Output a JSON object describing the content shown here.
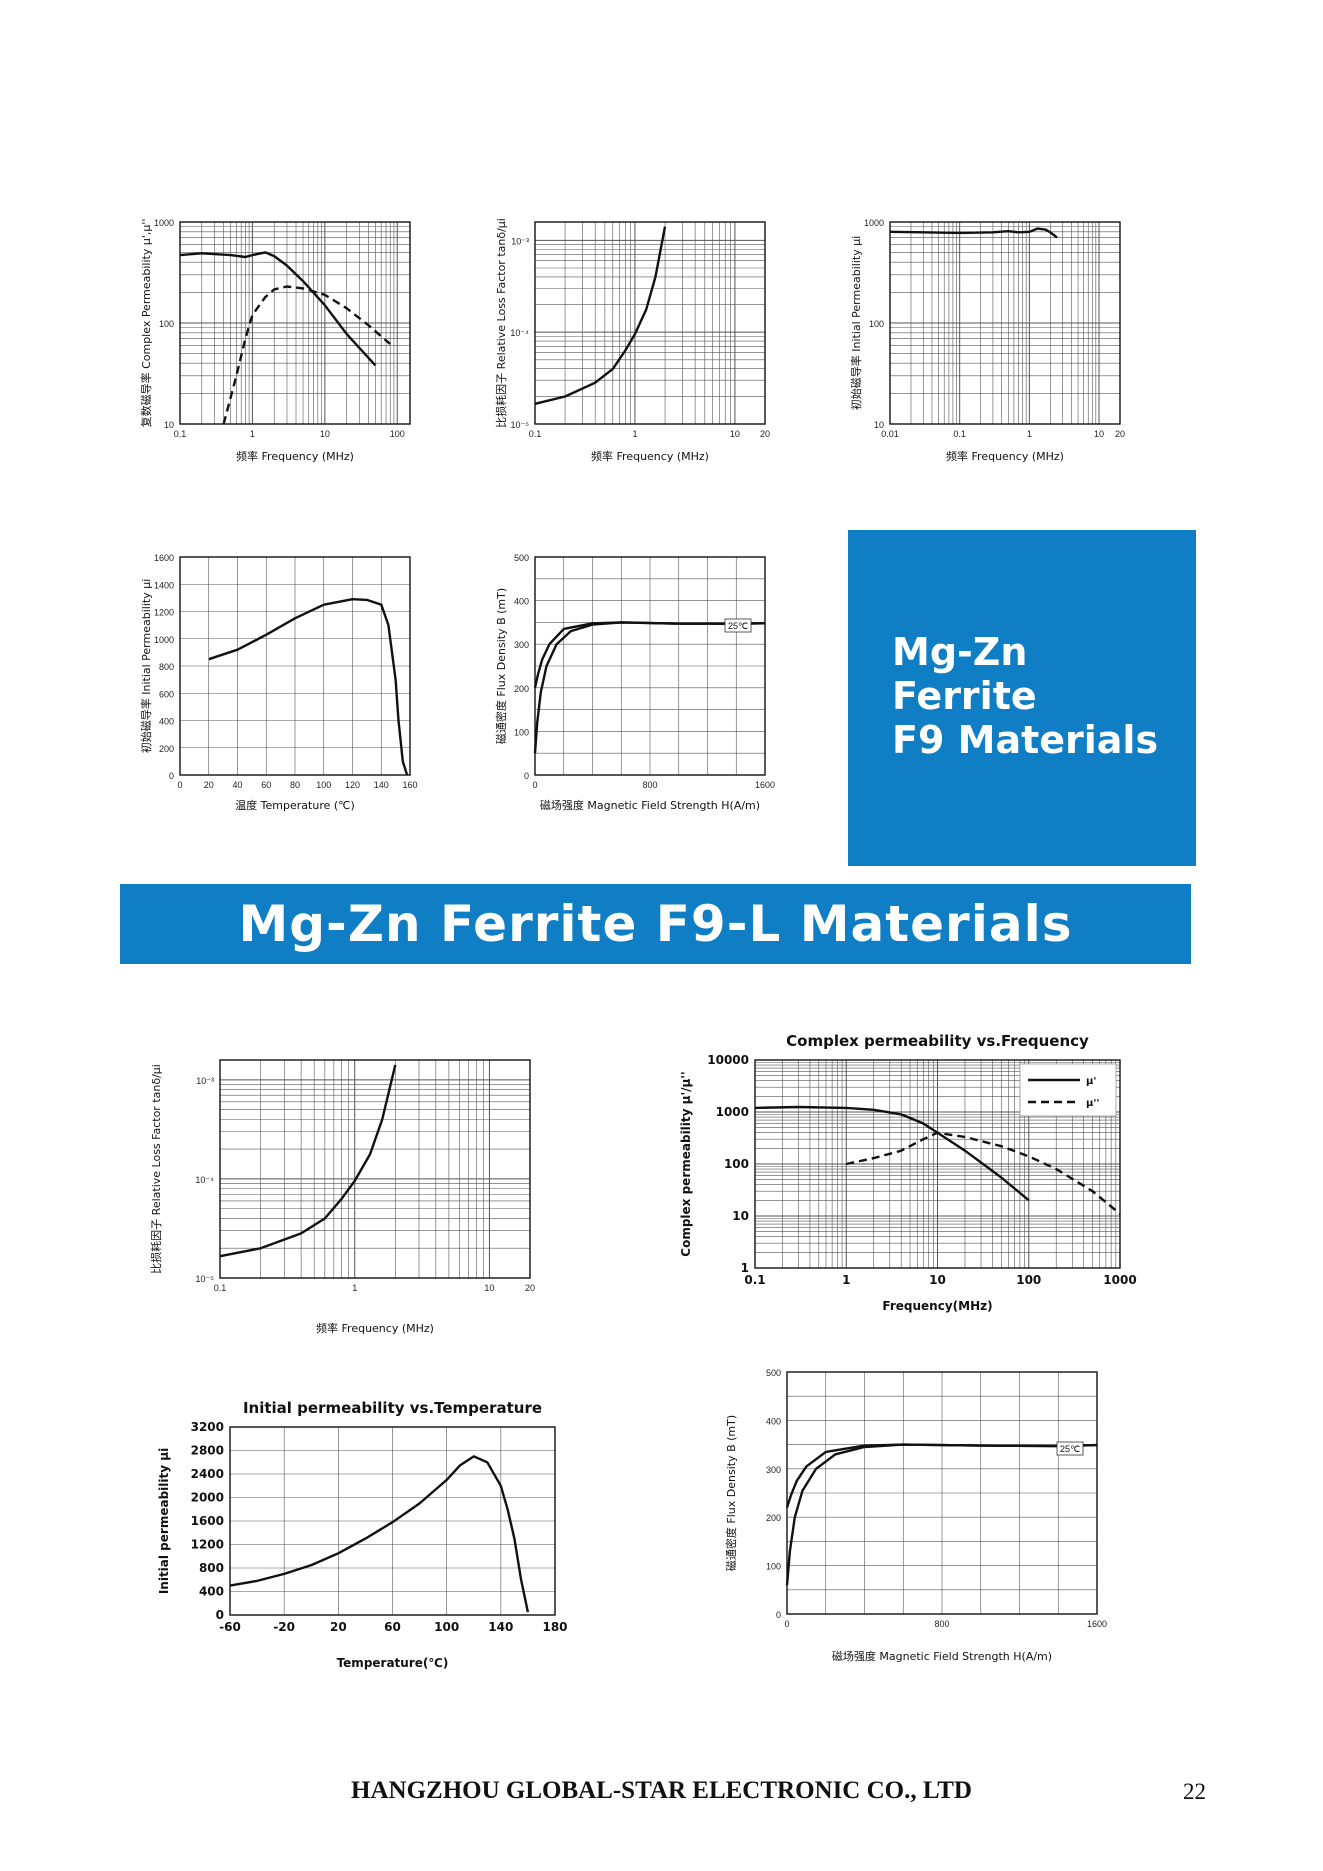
{
  "f9_header": {
    "line1": "Mg-Zn",
    "line2": "Ferrite",
    "line3": "F9 Materials"
  },
  "banner": {
    "title": "Mg-Zn Ferrite F9-L Materials"
  },
  "footer": {
    "company": "HANGZHOU GLOBAL-STAR ELECTRONIC CO., LTD",
    "page_number": "22"
  },
  "chart_data": [
    {
      "id": "f9-complex-perm",
      "type": "line",
      "xlabel": "频率 Frequency (MHz)",
      "ylabel": "复数磁导率 Complex Permeability μ',μ''",
      "xscale": "log",
      "yscale": "log",
      "xlim": [
        0.1,
        150
      ],
      "ylim": [
        10,
        1000
      ],
      "xticks": [
        "0.1",
        "1",
        "10",
        "100"
      ],
      "yticks": [
        "10",
        "100",
        "1000"
      ],
      "grid": true,
      "series": [
        {
          "style": "solid",
          "x": [
            0.1,
            0.2,
            0.5,
            0.8,
            1.0,
            1.5,
            2.0,
            3.0,
            5.0,
            10.0,
            20.0,
            50.0
          ],
          "y": [
            470,
            490,
            470,
            450,
            470,
            500,
            460,
            370,
            260,
            150,
            78,
            38
          ]
        },
        {
          "style": "dashed",
          "x": [
            0.4,
            0.6,
            0.8,
            1.0,
            1.5,
            2.0,
            3.0,
            5.0,
            10.0,
            20.0,
            40.0,
            80.0
          ],
          "y": [
            10,
            30,
            70,
            120,
            180,
            215,
            230,
            220,
            190,
            140,
            95,
            62
          ]
        }
      ]
    },
    {
      "id": "f9-loss-factor",
      "type": "line",
      "xlabel": "频率 Frequency (MHz)",
      "ylabel": "比损耗因子 Relative Loss Factor tanδ/μi",
      "xscale": "log",
      "yscale": "log",
      "xlim": [
        0.1,
        20
      ],
      "ylim_exp": [
        -5,
        -2.8
      ],
      "xticks": [
        "0.1",
        "1",
        "10",
        "20"
      ],
      "yticks": [
        "10⁻⁵",
        "10⁻⁴",
        "10⁻³"
      ],
      "grid": true,
      "series": [
        {
          "style": "solid",
          "x": [
            0.1,
            0.2,
            0.4,
            0.6,
            0.8,
            1.0,
            1.3,
            1.6,
            2.0
          ],
          "y_exp": [
            -4.78,
            -4.7,
            -4.55,
            -4.4,
            -4.2,
            -4.02,
            -3.75,
            -3.4,
            -2.85
          ]
        }
      ]
    },
    {
      "id": "f9-initial-perm-freq",
      "type": "line",
      "xlabel": "频率 Frequency (MHz)",
      "ylabel": "初始磁导率 Initial Permeability μi",
      "xscale": "log",
      "yscale": "log",
      "xlim": [
        0.01,
        20
      ],
      "ylim": [
        10,
        1000
      ],
      "xticks": [
        "0.01",
        "0.1",
        "1",
        "10",
        "20"
      ],
      "yticks": [
        "10",
        "100",
        "1000"
      ],
      "grid": true,
      "series": [
        {
          "style": "solid",
          "x": [
            0.01,
            0.03,
            0.1,
            0.3,
            0.5,
            0.7,
            1.0,
            1.3,
            1.7,
            2.0,
            2.5
          ],
          "y": [
            800,
            790,
            780,
            790,
            810,
            790,
            800,
            860,
            840,
            790,
            700
          ]
        }
      ]
    },
    {
      "id": "f9-initial-perm-temp",
      "type": "line",
      "xlabel": "温度 Temperature (℃)",
      "ylabel": "初始磁导率 Initial Permeability μi",
      "xlim": [
        0,
        160
      ],
      "ylim": [
        0,
        1600
      ],
      "xticks": [
        "0",
        "20",
        "40",
        "60",
        "80",
        "100",
        "120",
        "140",
        "160"
      ],
      "yticks": [
        "0",
        "200",
        "400",
        "600",
        "800",
        "1000",
        "1200",
        "1400",
        "1600"
      ],
      "grid": true,
      "series": [
        {
          "style": "solid",
          "x": [
            20,
            40,
            60,
            80,
            100,
            120,
            130,
            140,
            145,
            150,
            152,
            155,
            158
          ],
          "y": [
            850,
            920,
            1030,
            1150,
            1250,
            1290,
            1285,
            1250,
            1100,
            700,
            400,
            100,
            0
          ]
        }
      ]
    },
    {
      "id": "f9-bh",
      "type": "line",
      "xlabel": "磁场强度 Magnetic Field Strength H(A/m)",
      "ylabel": "磁通密度 Flux Density B (mT)",
      "annotation": "25℃",
      "xlim": [
        0,
        1600
      ],
      "ylim": [
        0,
        500
      ],
      "xticks": [
        "0",
        "800",
        "1600"
      ],
      "yticks": [
        "0",
        "100",
        "200",
        "300",
        "400",
        "500"
      ],
      "grid": true,
      "series": [
        {
          "style": "solid",
          "x": [
            0,
            20,
            50,
            100,
            200,
            400,
            600,
            1000,
            1400,
            1600
          ],
          "y": [
            200,
            230,
            265,
            300,
            335,
            348,
            350,
            347,
            347,
            348
          ]
        },
        {
          "style": "solid",
          "x": [
            0,
            15,
            40,
            80,
            150,
            250,
            400,
            600,
            1000,
            1400,
            1600
          ],
          "y": [
            50,
            120,
            190,
            250,
            300,
            330,
            345,
            350,
            347,
            347,
            348
          ]
        }
      ]
    },
    {
      "id": "f9l-loss-factor",
      "type": "line",
      "xlabel": "频率 Frequency (MHz)",
      "ylabel": "比损耗因子 Relative Loss Factor tanδ/μi",
      "xscale": "log",
      "yscale": "log",
      "xlim": [
        0.1,
        20
      ],
      "ylim_exp": [
        -5,
        -2.8
      ],
      "xticks": [
        "0.1",
        "1",
        "10",
        "20"
      ],
      "yticks": [
        "10⁻⁵",
        "10⁻⁴",
        "10⁻³"
      ],
      "grid": true,
      "series": [
        {
          "style": "solid",
          "x": [
            0.1,
            0.2,
            0.4,
            0.6,
            0.8,
            1.0,
            1.3,
            1.6,
            2.0
          ],
          "y_exp": [
            -4.78,
            -4.7,
            -4.55,
            -4.4,
            -4.2,
            -4.02,
            -3.75,
            -3.4,
            -2.85
          ]
        }
      ]
    },
    {
      "id": "f9l-complex-perm",
      "type": "line",
      "title": "Complex permeability vs.Frequency",
      "xlabel": "Frequency(MHz)",
      "ylabel": "Complex permeability μ'/μ''",
      "xscale": "log",
      "yscale": "log",
      "xlim": [
        0.1,
        1000
      ],
      "ylim": [
        1,
        10000
      ],
      "xticks": [
        "0.1",
        "1",
        "10",
        "100",
        "1000"
      ],
      "yticks": [
        "1",
        "10",
        "100",
        "1000",
        "10000"
      ],
      "grid": true,
      "legend": {
        "position": "top-right",
        "entries": [
          "μ'",
          "μ''"
        ]
      },
      "series": [
        {
          "name": "μ'",
          "style": "solid",
          "x": [
            0.1,
            0.3,
            1,
            2,
            4,
            7,
            10,
            20,
            50,
            100
          ],
          "y": [
            1200,
            1250,
            1200,
            1100,
            900,
            600,
            400,
            180,
            55,
            20
          ]
        },
        {
          "name": "μ''",
          "style": "dashed",
          "x": [
            1,
            2,
            4,
            7,
            10,
            20,
            50,
            100,
            200,
            500,
            1000
          ],
          "y": [
            100,
            130,
            180,
            300,
            400,
            330,
            220,
            140,
            80,
            30,
            11
          ]
        }
      ]
    },
    {
      "id": "f9l-initial-perm-temp",
      "type": "line",
      "title": "Initial permeability vs.Temperature",
      "xlabel": "Temperature(℃)",
      "ylabel": "Initial permeability μi",
      "xlim": [
        -60,
        180
      ],
      "ylim": [
        0,
        3200
      ],
      "xticks": [
        "-60",
        "-20",
        "20",
        "60",
        "100",
        "140",
        "180"
      ],
      "yticks": [
        "0",
        "400",
        "800",
        "1200",
        "1600",
        "2000",
        "2400",
        "2800",
        "3200"
      ],
      "grid": true,
      "series": [
        {
          "style": "solid",
          "x": [
            -60,
            -40,
            -20,
            0,
            20,
            40,
            60,
            80,
            100,
            110,
            120,
            130,
            140,
            145,
            150,
            155,
            160
          ],
          "y": [
            500,
            580,
            700,
            850,
            1050,
            1300,
            1580,
            1900,
            2300,
            2550,
            2700,
            2600,
            2200,
            1800,
            1300,
            600,
            50
          ]
        }
      ]
    },
    {
      "id": "f9l-bh",
      "type": "line",
      "xlabel": "磁场强度 Magnetic Field Strength H(A/m)",
      "ylabel": "磁通密度 Flux Density B (mT)",
      "annotation": "25℃",
      "xlim": [
        0,
        1600
      ],
      "ylim": [
        0,
        500
      ],
      "xticks": [
        "0",
        "800",
        "1600"
      ],
      "yticks": [
        "0",
        "100",
        "200",
        "300",
        "400",
        "500"
      ],
      "grid": true,
      "series": [
        {
          "style": "solid",
          "x": [
            0,
            20,
            50,
            100,
            200,
            400,
            600,
            1000,
            1400,
            1600
          ],
          "y": [
            220,
            245,
            275,
            305,
            335,
            348,
            350,
            348,
            347,
            349
          ]
        },
        {
          "style": "solid",
          "x": [
            0,
            15,
            40,
            80,
            150,
            250,
            400,
            600,
            1000,
            1400,
            1600
          ],
          "y": [
            60,
            130,
            200,
            255,
            300,
            330,
            345,
            350,
            348,
            347,
            349
          ]
        }
      ]
    }
  ]
}
